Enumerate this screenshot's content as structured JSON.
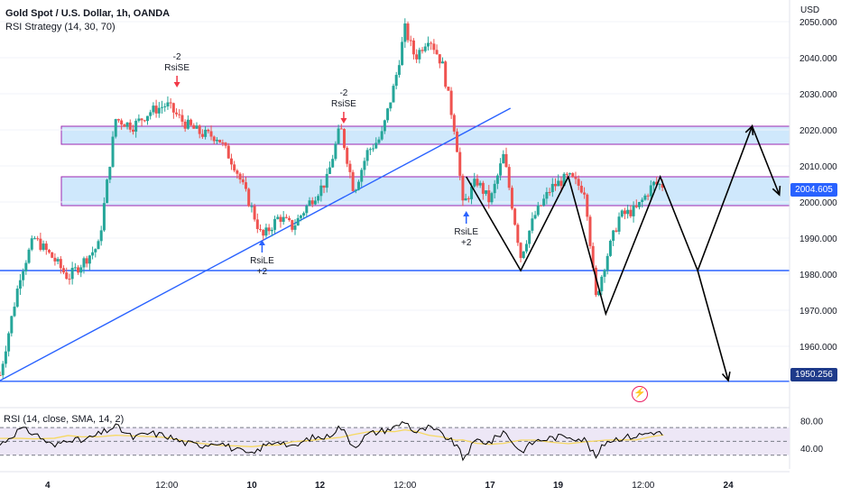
{
  "header": {
    "title": "Gold Spot / U.S. Dollar, 1h, OANDA",
    "subtitle": "RSI Strategy (14, 30, 70)",
    "currency": "USD"
  },
  "price_tags": {
    "last": "2004.605",
    "target": "1950.256"
  },
  "rsi_panel": {
    "label": "RSI (14, close, SMA, 14, 2)",
    "ticks": [
      "80.00",
      "40.00"
    ]
  },
  "icons": {
    "alert": "lightning-bolt-icon"
  },
  "colors": {
    "up": "#26a69a",
    "down": "#ef5350",
    "zone_fill": "#bbdefb",
    "zone_border": "#9c27b0",
    "trend": "#2962ff",
    "projection": "#000000",
    "rsi_line": "#000000",
    "rsi_ma": "#f6d860",
    "rsi_band": "#ede7f6"
  },
  "chart_data": {
    "type": "candlestick",
    "title": "Gold Spot / U.S. Dollar, 1h, OANDA",
    "y_axis": {
      "ylim": [
        1944,
        2056
      ],
      "ticks": [
        "2050.000",
        "2040.000",
        "2030.000",
        "2020.000",
        "2010.000",
        "2000.000",
        "1990.000",
        "1980.000",
        "1970.000",
        "1960.000"
      ]
    },
    "x_axis": {
      "range_days": [
        2.6,
        25.8
      ],
      "ticks": [
        {
          "label": "4",
          "day": 4
        },
        {
          "label": "12:00",
          "day": 7.5
        },
        {
          "label": "10",
          "day": 10
        },
        {
          "label": "12",
          "day": 12
        },
        {
          "label": "12:00",
          "day": 14.5
        },
        {
          "label": "17",
          "day": 17
        },
        {
          "label": "19",
          "day": 19
        },
        {
          "label": "12:00",
          "day": 21.5
        },
        {
          "label": "24",
          "day": 24
        }
      ]
    },
    "price_path": [
      [
        2.6,
        1952
      ],
      [
        3.2,
        1980
      ],
      [
        3.6,
        1990
      ],
      [
        4.2,
        1984
      ],
      [
        4.6,
        1979
      ],
      [
        5.0,
        1983
      ],
      [
        5.5,
        1988
      ],
      [
        6.0,
        2023
      ],
      [
        6.5,
        2021
      ],
      [
        7.0,
        2025
      ],
      [
        7.5,
        2027
      ],
      [
        8.0,
        2022
      ],
      [
        8.5,
        2019
      ],
      [
        9.0,
        2018
      ],
      [
        9.5,
        2010
      ],
      [
        10.0,
        1998
      ],
      [
        10.3,
        1990
      ],
      [
        10.8,
        1996
      ],
      [
        11.2,
        1993
      ],
      [
        11.7,
        2000
      ],
      [
        12.2,
        2006
      ],
      [
        12.6,
        2021
      ],
      [
        13.0,
        2003
      ],
      [
        13.4,
        2014
      ],
      [
        13.8,
        2018
      ],
      [
        14.2,
        2033
      ],
      [
        14.5,
        2048
      ],
      [
        14.8,
        2040
      ],
      [
        15.2,
        2046
      ],
      [
        15.6,
        2038
      ],
      [
        16.0,
        2018
      ],
      [
        16.2,
        1999
      ],
      [
        16.6,
        2006
      ],
      [
        17.0,
        2000
      ],
      [
        17.4,
        2013
      ],
      [
        17.9,
        1985
      ],
      [
        18.3,
        1996
      ],
      [
        18.8,
        2004
      ],
      [
        19.3,
        2007
      ],
      [
        19.8,
        2003
      ],
      [
        20.1,
        1973
      ],
      [
        20.4,
        1984
      ],
      [
        20.8,
        1996
      ],
      [
        21.3,
        1998
      ],
      [
        21.8,
        2005
      ],
      [
        22.1,
        2004.6
      ]
    ],
    "zones": [
      {
        "low": 2016,
        "high": 2021
      },
      {
        "low": 1999,
        "high": 2007
      }
    ],
    "horizontal_lines": [
      1981,
      1950.3
    ],
    "trend_line": [
      [
        2.6,
        1950.5
      ],
      [
        17.6,
        2026
      ]
    ],
    "projection_path": [
      [
        16.3,
        2007
      ],
      [
        17.9,
        1981
      ],
      [
        19.3,
        2007
      ],
      [
        20.4,
        1969
      ],
      [
        22.0,
        2007
      ],
      [
        23.1,
        1981
      ],
      [
        24.7,
        2021
      ],
      [
        25.5,
        2002
      ]
    ],
    "projection_arrow": [
      [
        23.1,
        1981
      ],
      [
        24.0,
        1950.5
      ]
    ],
    "annotations": [
      {
        "lines": [
          "-2",
          "RsiSE"
        ],
        "day": 7.8,
        "price": 2032,
        "dir": "down",
        "color": "#f23645"
      },
      {
        "lines": [
          "-2",
          "RsiSE"
        ],
        "day": 12.7,
        "price": 2022,
        "dir": "down",
        "color": "#f23645"
      },
      {
        "lines": [
          "RsiLE",
          "+2"
        ],
        "day": 10.3,
        "price": 1990,
        "dir": "up",
        "color": "#2962ff"
      },
      {
        "lines": [
          "RsiLE",
          "+2"
        ],
        "day": 16.3,
        "price": 1998,
        "dir": "up",
        "color": "#2962ff"
      }
    ],
    "rsi": {
      "ylim": [
        10,
        95
      ],
      "levels": [
        70,
        50,
        30
      ],
      "path": [
        [
          2.6,
          45
        ],
        [
          3.2,
          68
        ],
        [
          3.6,
          62
        ],
        [
          4.2,
          42
        ],
        [
          4.6,
          55
        ],
        [
          5.0,
          50
        ],
        [
          5.5,
          60
        ],
        [
          6.0,
          72
        ],
        [
          6.5,
          55
        ],
        [
          7.0,
          62
        ],
        [
          7.5,
          58
        ],
        [
          8.0,
          48
        ],
        [
          8.5,
          44
        ],
        [
          9.0,
          50
        ],
        [
          9.5,
          38
        ],
        [
          10.0,
          30
        ],
        [
          10.3,
          42
        ],
        [
          10.8,
          52
        ],
        [
          11.2,
          40
        ],
        [
          11.7,
          55
        ],
        [
          12.2,
          56
        ],
        [
          12.6,
          72
        ],
        [
          13.0,
          42
        ],
        [
          13.4,
          60
        ],
        [
          13.8,
          65
        ],
        [
          14.2,
          70
        ],
        [
          14.5,
          80
        ],
        [
          14.8,
          62
        ],
        [
          15.2,
          70
        ],
        [
          15.6,
          60
        ],
        [
          16.0,
          45
        ],
        [
          16.2,
          25
        ],
        [
          16.6,
          52
        ],
        [
          17.0,
          48
        ],
        [
          17.4,
          65
        ],
        [
          17.9,
          35
        ],
        [
          18.3,
          50
        ],
        [
          18.8,
          55
        ],
        [
          19.3,
          58
        ],
        [
          19.8,
          52
        ],
        [
          20.1,
          26
        ],
        [
          20.4,
          50
        ],
        [
          20.8,
          55
        ],
        [
          21.3,
          58
        ],
        [
          21.8,
          64
        ],
        [
          22.1,
          60
        ]
      ]
    }
  }
}
